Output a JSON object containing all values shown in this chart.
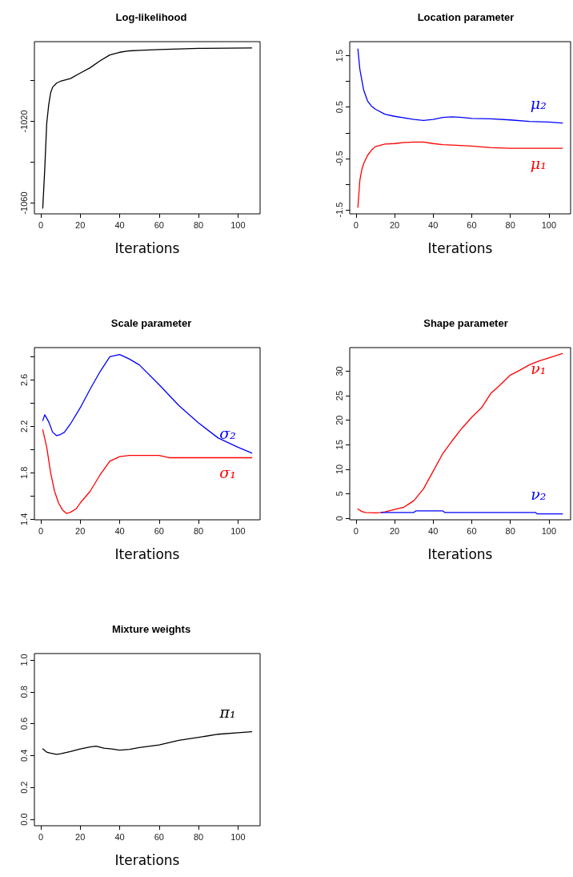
{
  "chart_data": [
    {
      "type": "line",
      "title": "Log-likelihood",
      "xlabel": "Iterations",
      "marker": "none",
      "xlim": [
        -3.24,
        111.24
      ],
      "xticks": [
        0,
        20,
        40,
        60,
        80,
        100
      ],
      "ylim": [
        -1065.3,
        -981
      ],
      "yticks": [
        -1060,
        {
          "value": -1040,
          "label": null
        },
        -1020,
        {
          "value": -1000,
          "label": null
        }
      ],
      "series": [
        {
          "color": "#000000",
          "x": [
            1,
            2,
            3,
            4,
            5,
            6,
            8,
            10,
            15,
            20,
            25,
            30,
            35,
            40,
            45,
            50,
            60,
            80,
            107
          ],
          "values": [
            -1062.5,
            -1043.5,
            -1021,
            -1012,
            -1006,
            -1003.3,
            -1001.3,
            -1000.4,
            -999.1,
            -996.4,
            -993.8,
            -990.4,
            -987.5,
            -986.2,
            -985.5,
            -985.3,
            -984.9,
            -984.3,
            -984.1
          ]
        }
      ]
    },
    {
      "type": "line",
      "title": "Location parameter",
      "xlabel": "Iterations",
      "marker": "none",
      "xlim": [
        -3.24,
        111.24
      ],
      "xticks": [
        0,
        20,
        40,
        60,
        80,
        100
      ],
      "ylim": [
        -1.578,
        1.774
      ],
      "yticks": [
        -1.5,
        {
          "value": -1,
          "label": null
        },
        -0.5,
        {
          "value": 0,
          "label": null
        },
        0.5,
        {
          "value": 1,
          "label": null
        },
        1.5
      ],
      "series": [
        {
          "name": "μ₂",
          "color": "#0000ff",
          "x": [
            1,
            2,
            3,
            4,
            6,
            8,
            10,
            15,
            20,
            25,
            30,
            35,
            40,
            45,
            50,
            55,
            60,
            70,
            80,
            90,
            100,
            107
          ],
          "values": [
            1.63,
            1.24,
            1.03,
            0.83,
            0.62,
            0.52,
            0.46,
            0.36,
            0.32,
            0.29,
            0.26,
            0.24,
            0.26,
            0.3,
            0.31,
            0.3,
            0.28,
            0.27,
            0.25,
            0.22,
            0.21,
            0.19
          ]
        },
        {
          "name": "μ₁",
          "color": "#ff0000",
          "x": [
            1,
            2,
            3,
            4,
            6,
            8,
            10,
            15,
            20,
            25,
            30,
            35,
            40,
            45,
            50,
            60,
            70,
            80,
            107
          ],
          "values": [
            -1.45,
            -0.93,
            -0.72,
            -0.6,
            -0.44,
            -0.34,
            -0.27,
            -0.22,
            -0.21,
            -0.19,
            -0.18,
            -0.18,
            -0.21,
            -0.23,
            -0.24,
            -0.26,
            -0.29,
            -0.3,
            -0.3
          ]
        }
      ]
    },
    {
      "type": "line",
      "title": "Scale parameter",
      "xlabel": "Iterations",
      "marker": "none",
      "xlim": [
        -3.24,
        111.24
      ],
      "xticks": [
        0,
        20,
        40,
        60,
        80,
        100
      ],
      "ylim": [
        1.395,
        2.879
      ],
      "yticks": [
        1.4,
        {
          "value": 1.6,
          "label": null
        },
        1.8,
        {
          "value": 2,
          "label": null
        },
        2.2,
        {
          "value": 2.4,
          "label": null
        },
        2.6,
        {
          "value": 2.8,
          "label": null
        }
      ],
      "series": [
        {
          "name": "σ₂",
          "color": "#0000ff",
          "x": [
            1,
            2,
            4,
            6,
            8,
            10,
            12,
            15,
            20,
            25,
            30,
            35,
            40,
            45,
            50,
            60,
            70,
            80,
            90,
            100,
            107
          ],
          "values": [
            2.25,
            2.3,
            2.24,
            2.15,
            2.12,
            2.13,
            2.15,
            2.22,
            2.36,
            2.52,
            2.67,
            2.8,
            2.82,
            2.78,
            2.73,
            2.56,
            2.38,
            2.23,
            2.1,
            2.02,
            1.97
          ]
        },
        {
          "name": "σ₁",
          "color": "#ff0000",
          "x": [
            1,
            3,
            5,
            7,
            9,
            11,
            13,
            15,
            18,
            20,
            25,
            30,
            35,
            40,
            45,
            50,
            60,
            65,
            80,
            107
          ],
          "values": [
            2.17,
            2.02,
            1.8,
            1.64,
            1.54,
            1.48,
            1.45,
            1.46,
            1.49,
            1.54,
            1.64,
            1.78,
            1.9,
            1.94,
            1.95,
            1.95,
            1.95,
            1.93,
            1.93,
            1.93
          ]
        }
      ]
    },
    {
      "type": "line",
      "title": "Shape parameter",
      "xlabel": "Iterations",
      "marker": "none",
      "xlim": [
        -3.24,
        111.24
      ],
      "xticks": [
        0,
        20,
        40,
        60,
        80,
        100
      ],
      "ylim": [
        -0.3,
        34.8
      ],
      "yticks": [
        0,
        5,
        10,
        15,
        20,
        25,
        30
      ],
      "series": [
        {
          "name": "ν₁",
          "color": "#ff0000",
          "x": [
            1,
            3,
            5,
            10,
            13,
            15,
            20,
            25,
            30,
            35,
            40,
            45,
            50,
            55,
            60,
            65,
            70,
            75,
            80,
            85,
            90,
            95,
            100,
            107
          ],
          "values": [
            1.9,
            1.4,
            1.2,
            1.1,
            1.2,
            1.3,
            1.8,
            2.3,
            3.6,
            6,
            9.6,
            13.2,
            15.9,
            18.4,
            20.6,
            22.5,
            25.5,
            27.3,
            29.2,
            30.2,
            31.3,
            32.1,
            32.7,
            33.6
          ]
        },
        {
          "name": "ν₂",
          "color": "#0000ff",
          "x": [
            13,
            30,
            31,
            45,
            46,
            93,
            94,
            107
          ],
          "values": [
            1.2,
            1.2,
            1.5,
            1.5,
            1.2,
            1.2,
            0.9,
            0.9
          ]
        }
      ]
    },
    {
      "type": "line",
      "title": "Mixture weights",
      "xlabel": "Iterations",
      "marker": "none",
      "xlim": [
        -3.24,
        111.24
      ],
      "xticks": [
        0,
        20,
        40,
        60,
        80,
        100
      ],
      "ylim": [
        -0.04,
        1.04
      ],
      "yticks": [
        {
          "value": 0,
          "label": "0.0"
        },
        0.2,
        0.4,
        0.6,
        0.8,
        {
          "value": 1,
          "label": "1.0"
        }
      ],
      "series": [
        {
          "name": "π₁",
          "color": "#000000",
          "x": [
            1,
            3,
            5,
            8,
            10,
            15,
            20,
            25,
            28,
            32,
            36,
            40,
            45,
            50,
            60,
            70,
            80,
            90,
            100,
            107
          ],
          "values": [
            0.442,
            0.422,
            0.415,
            0.408,
            0.412,
            0.425,
            0.442,
            0.454,
            0.459,
            0.447,
            0.442,
            0.434,
            0.439,
            0.45,
            0.467,
            0.496,
            0.514,
            0.534,
            0.543,
            0.55
          ]
        }
      ]
    }
  ]
}
